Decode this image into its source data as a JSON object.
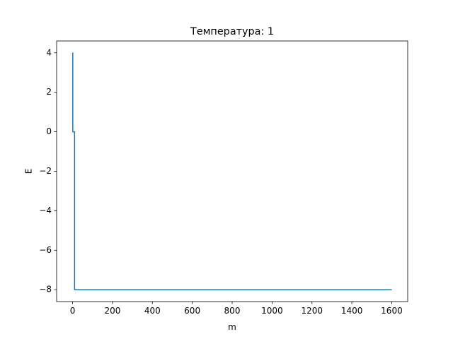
{
  "chart_data": {
    "type": "line",
    "title": "Температура: 1",
    "xlabel": "m",
    "ylabel": "E",
    "xlim": [
      -80,
      1680
    ],
    "ylim": [
      -8.6,
      4.6
    ],
    "xticks": [
      0,
      200,
      400,
      600,
      800,
      1000,
      1200,
      1400,
      1600
    ],
    "yticks": [
      4,
      2,
      0,
      -2,
      -4,
      -6,
      -8
    ],
    "xtick_labels": [
      "0",
      "200",
      "400",
      "600",
      "800",
      "1000",
      "1200",
      "1400",
      "1600"
    ],
    "ytick_labels": [
      "4",
      "2",
      "0",
      "−2",
      "−4",
      "−6",
      "−8"
    ],
    "grid": false,
    "series": [
      {
        "color": "#1f77b4",
        "x": [
          0,
          1,
          1,
          10,
          10,
          1600
        ],
        "y": [
          4,
          4,
          0,
          0,
          -8,
          -8
        ]
      }
    ]
  }
}
